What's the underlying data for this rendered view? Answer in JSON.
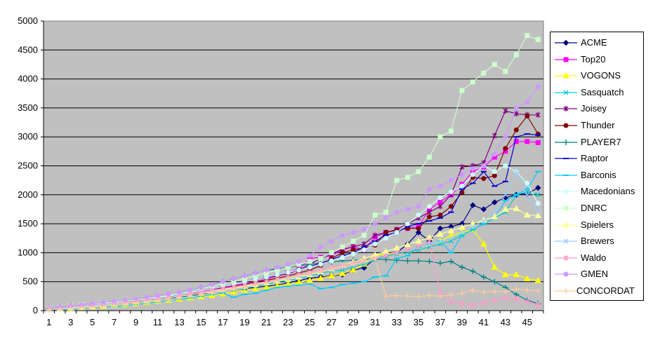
{
  "chart_data": {
    "type": "line",
    "title": "",
    "xlabel": "",
    "ylabel": "",
    "ylim": [
      0,
      5000
    ],
    "yticks": [
      0,
      500,
      1000,
      1500,
      2000,
      2500,
      3000,
      3500,
      4000,
      4500,
      5000
    ],
    "ytick_labels": [
      "0",
      "500",
      "1000",
      "1500",
      "2000",
      "2500",
      "3000",
      "3500",
      "4000",
      "4500",
      "5000"
    ],
    "x": [
      1,
      2,
      3,
      4,
      5,
      6,
      7,
      8,
      9,
      10,
      11,
      12,
      13,
      14,
      15,
      16,
      17,
      18,
      19,
      20,
      21,
      22,
      23,
      24,
      25,
      26,
      27,
      28,
      29,
      30,
      31,
      32,
      33,
      34,
      35,
      36,
      37,
      38,
      39,
      40,
      41,
      42,
      43,
      44,
      45,
      46
    ],
    "xtick_labels": [
      "1",
      "3",
      "5",
      "7",
      "9",
      "11",
      "13",
      "15",
      "17",
      "19",
      "21",
      "23",
      "25",
      "27",
      "29",
      "31",
      "33",
      "35",
      "37",
      "39",
      "41",
      "43",
      "45"
    ],
    "grid": "horizontal",
    "plot_background": "#c0c0c0",
    "legend_position": "right",
    "series": [
      {
        "name": "ACME",
        "color": "#000080",
        "marker": "diamond",
        "values": [
          20,
          40,
          60,
          60,
          80,
          90,
          100,
          130,
          140,
          150,
          170,
          200,
          240,
          260,
          280,
          300,
          330,
          360,
          380,
          400,
          420,
          440,
          480,
          520,
          560,
          580,
          600,
          620,
          700,
          740,
          900,
          950,
          1000,
          1150,
          1350,
          1200,
          1420,
          1450,
          1500,
          1820,
          1750,
          1870,
          1950,
          2000,
          2020,
          2120
        ]
      },
      {
        "name": "Top20",
        "color": "#ff00ff",
        "marker": "square",
        "values": [
          30,
          40,
          60,
          80,
          90,
          100,
          110,
          130,
          150,
          170,
          200,
          230,
          260,
          300,
          330,
          360,
          400,
          430,
          470,
          500,
          540,
          600,
          650,
          720,
          900,
          920,
          950,
          1050,
          1100,
          1050,
          1270,
          1350,
          1400,
          1420,
          1450,
          1750,
          1880,
          2000,
          2180,
          2400,
          2480,
          2650,
          2750,
          2920,
          2920,
          2900
        ]
      },
      {
        "name": "VOGONS",
        "color": "#ffff00",
        "marker": "triangle",
        "values": [
          20,
          30,
          40,
          50,
          60,
          70,
          90,
          100,
          120,
          140,
          160,
          180,
          200,
          220,
          240,
          260,
          290,
          320,
          350,
          380,
          400,
          430,
          460,
          490,
          520,
          560,
          600,
          640,
          700,
          800,
          950,
          980,
          1000,
          1050,
          1100,
          1150,
          1200,
          1300,
          1350,
          1400,
          1150,
          750,
          620,
          620,
          550,
          520
        ]
      },
      {
        "name": "Sasquatch",
        "color": "#00cccc",
        "marker": "x",
        "values": [
          20,
          30,
          40,
          50,
          60,
          80,
          100,
          110,
          130,
          150,
          170,
          200,
          230,
          250,
          270,
          300,
          330,
          360,
          380,
          420,
          450,
          500,
          520,
          560,
          600,
          650,
          680,
          700,
          760,
          800,
          880,
          940,
          980,
          1020,
          1050,
          1100,
          1150,
          1200,
          1300,
          1400,
          1500,
          1600,
          1700,
          2000,
          2050,
          2000
        ]
      },
      {
        "name": "Joisey",
        "color": "#800080",
        "marker": "star",
        "values": [
          30,
          40,
          70,
          90,
          110,
          120,
          130,
          150,
          170,
          190,
          210,
          240,
          270,
          300,
          340,
          380,
          420,
          460,
          500,
          540,
          570,
          600,
          640,
          700,
          800,
          900,
          980,
          1060,
          1100,
          1150,
          1300,
          1350,
          1400,
          1500,
          1600,
          1700,
          1800,
          2000,
          2480,
          2500,
          2550,
          3020,
          3450,
          3400,
          3380,
          3380
        ]
      },
      {
        "name": "Thunder",
        "color": "#800000",
        "marker": "circle",
        "values": [
          25,
          35,
          50,
          60,
          70,
          90,
          110,
          130,
          150,
          170,
          190,
          220,
          250,
          280,
          310,
          350,
          390,
          420,
          450,
          500,
          520,
          560,
          600,
          650,
          700,
          780,
          900,
          1000,
          1050,
          1080,
          1130,
          1350,
          1390,
          1420,
          1420,
          1620,
          1650,
          1800,
          2040,
          2300,
          2280,
          2330,
          2800,
          3120,
          3360,
          3050
        ]
      },
      {
        "name": "PLAYER7",
        "color": "#008080",
        "marker": "plus",
        "values": [
          40,
          60,
          80,
          90,
          100,
          110,
          120,
          140,
          160,
          180,
          210,
          250,
          300,
          350,
          400,
          450,
          500,
          550,
          600,
          650,
          700,
          720,
          750,
          780,
          800,
          820,
          840,
          860,
          870,
          880,
          890,
          880,
          870,
          860,
          860,
          850,
          820,
          850,
          750,
          680,
          580,
          500,
          400,
          280,
          180,
          120
        ]
      },
      {
        "name": "Raptor",
        "color": "#0000cc",
        "marker": "dash",
        "values": [
          30,
          50,
          70,
          90,
          110,
          120,
          140,
          150,
          170,
          190,
          210,
          240,
          270,
          300,
          340,
          380,
          420,
          460,
          500,
          540,
          580,
          620,
          660,
          700,
          760,
          820,
          880,
          950,
          1000,
          1100,
          1200,
          1300,
          1350,
          1450,
          1500,
          1550,
          1600,
          1700,
          2100,
          2200,
          2400,
          2150,
          2230,
          3000,
          3050,
          3030
        ]
      },
      {
        "name": "Barconis",
        "color": "#00ccff",
        "marker": "dash",
        "values": [
          10,
          20,
          30,
          40,
          50,
          60,
          70,
          90,
          110,
          130,
          150,
          180,
          200,
          220,
          250,
          280,
          300,
          230,
          280,
          300,
          350,
          400,
          420,
          440,
          460,
          380,
          400,
          450,
          470,
          500,
          580,
          600,
          900,
          950,
          1100,
          1150,
          1200,
          1000,
          1300,
          1400,
          1500,
          1600,
          1900,
          2000,
          2100,
          2400
        ]
      },
      {
        "name": "Macedonians",
        "color": "#ccffff",
        "marker": "circle",
        "values": [
          30,
          50,
          70,
          80,
          100,
          120,
          140,
          160,
          180,
          200,
          220,
          250,
          280,
          310,
          340,
          380,
          420,
          460,
          500,
          540,
          580,
          620,
          660,
          700,
          750,
          800,
          860,
          920,
          980,
          1050,
          1150,
          1250,
          1350,
          1500,
          1650,
          1800,
          1950,
          2050,
          2150,
          2350,
          2500,
          2400,
          2500,
          2400,
          2200,
          1850
        ]
      },
      {
        "name": "DNRC",
        "color": "#ccffcc",
        "marker": "square",
        "values": [
          40,
          60,
          80,
          100,
          110,
          130,
          140,
          160,
          180,
          200,
          230,
          260,
          300,
          340,
          380,
          420,
          460,
          500,
          550,
          600,
          650,
          700,
          750,
          800,
          850,
          900,
          1000,
          1100,
          1200,
          1300,
          1650,
          1700,
          2250,
          2300,
          2400,
          2650,
          3000,
          3100,
          3800,
          3950,
          4100,
          4250,
          4130,
          4420,
          4750,
          4680
        ]
      },
      {
        "name": "Spielers",
        "color": "#ffff99",
        "marker": "triangle",
        "values": [
          20,
          30,
          50,
          60,
          70,
          90,
          110,
          130,
          150,
          170,
          190,
          220,
          250,
          270,
          300,
          330,
          360,
          390,
          420,
          450,
          480,
          510,
          540,
          580,
          620,
          670,
          720,
          780,
          840,
          900,
          960,
          1020,
          1080,
          1140,
          1200,
          1260,
          1320,
          1380,
          1440,
          1500,
          1560,
          1620,
          1750,
          1760,
          1650,
          1640
        ]
      },
      {
        "name": "Brewers",
        "color": "#99ccff",
        "marker": "x",
        "values": [
          25,
          40,
          60,
          70,
          90,
          100,
          120,
          140,
          160,
          180,
          200,
          230,
          260,
          290,
          320,
          350,
          380,
          410,
          440,
          470,
          500,
          530,
          560,
          600,
          640,
          680,
          720,
          760,
          800,
          850,
          900,
          950,
          1000,
          1050,
          1100,
          1150,
          1200,
          1250,
          1350,
          1450,
          1550,
          1700,
          2000,
          2400,
          2000,
          1700
        ]
      },
      {
        "name": "Waldo",
        "color": "#ff99cc",
        "marker": "star",
        "values": [
          30,
          50,
          70,
          80,
          100,
          110,
          130,
          140,
          160,
          180,
          200,
          230,
          260,
          290,
          320,
          350,
          380,
          410,
          440,
          470,
          500,
          540,
          580,
          620,
          660,
          700,
          740,
          780,
          820,
          860,
          900,
          950,
          1000,
          1050,
          1100,
          1200,
          300,
          150,
          120,
          100,
          130,
          180,
          220,
          200,
          150,
          100
        ]
      },
      {
        "name": "GMEN",
        "color": "#cc99ff",
        "marker": "circle",
        "values": [
          40,
          60,
          80,
          100,
          120,
          140,
          160,
          180,
          200,
          230,
          260,
          290,
          320,
          360,
          400,
          450,
          500,
          550,
          600,
          650,
          700,
          750,
          800,
          850,
          950,
          1100,
          1200,
          1300,
          1350,
          1400,
          1500,
          1600,
          1700,
          1750,
          1800,
          2100,
          2150,
          2250,
          2350,
          2450,
          2500,
          2700,
          3000,
          3500,
          3600,
          3870
        ]
      },
      {
        "name": "CONCORDAT",
        "color": "#ffcc99",
        "marker": "plus",
        "values": [
          20,
          30,
          40,
          50,
          60,
          70,
          90,
          110,
          130,
          150,
          170,
          190,
          210,
          240,
          270,
          300,
          330,
          360,
          400,
          440,
          480,
          520,
          560,
          600,
          640,
          680,
          720,
          760,
          800,
          850,
          900,
          250,
          260,
          250,
          240,
          260,
          250,
          270,
          300,
          350,
          320,
          330,
          330,
          370,
          350,
          340
        ]
      }
    ]
  }
}
